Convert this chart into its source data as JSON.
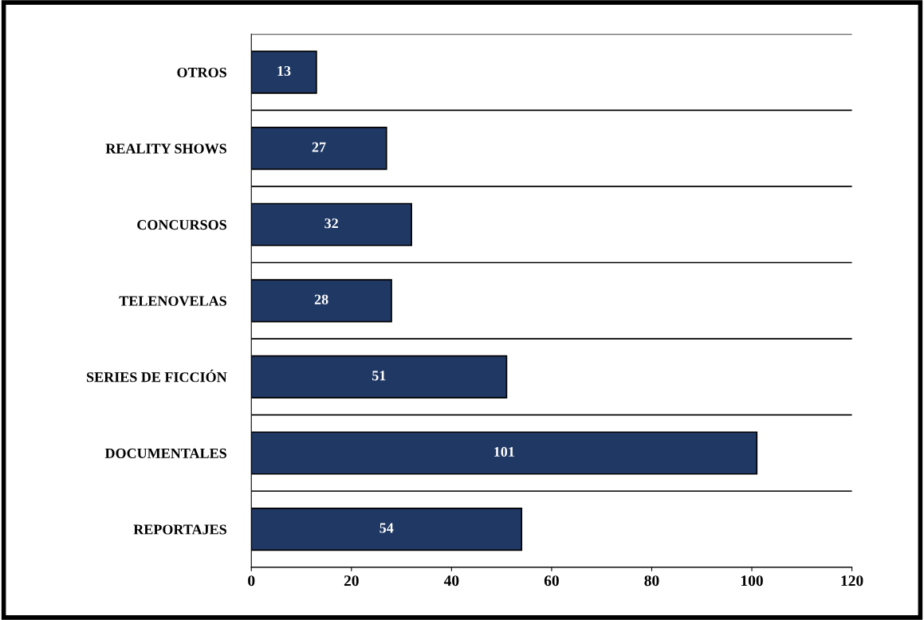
{
  "chart_data": {
    "type": "bar",
    "orientation": "horizontal",
    "categories": [
      "OTROS",
      "REALITY SHOWS",
      "CONCURSOS",
      "TELENOVELAS",
      "SERIES DE FICCIÓN",
      "DOCUMENTALES",
      "REPORTAJES"
    ],
    "values": [
      13,
      27,
      32,
      28,
      51,
      101,
      54
    ],
    "color": "#203864",
    "xlim": [
      0,
      120
    ],
    "xticks": [
      0,
      20,
      40,
      60,
      80,
      100,
      120
    ],
    "data_labels": true
  }
}
